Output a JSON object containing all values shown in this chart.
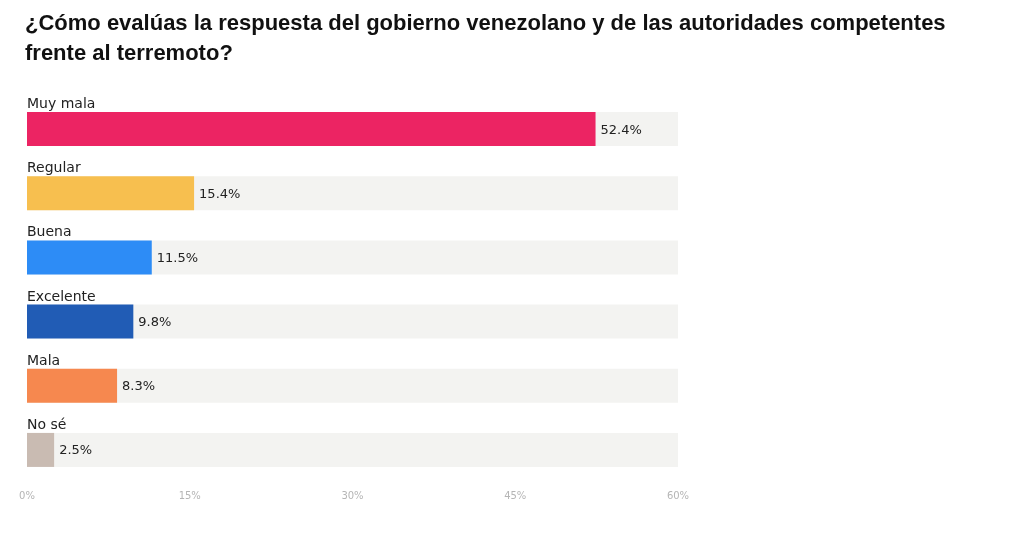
{
  "chart_data": {
    "type": "bar",
    "orientation": "horizontal",
    "title": "¿Cómo evalúas la respuesta del gobierno venezolano y de las autoridades competentes frente al terremoto?",
    "categories": [
      "Muy mala",
      "Regular",
      "Buena",
      "Excelente",
      "Mala",
      "No sé"
    ],
    "values": [
      52.4,
      15.4,
      11.5,
      9.8,
      8.3,
      2.5
    ],
    "colors": [
      "#ec2463",
      "#f7bf4f",
      "#2d8cf6",
      "#215cb5",
      "#f6884f",
      "#c9bbb2"
    ],
    "value_labels": [
      "52.4%",
      "15.4%",
      "11.5%",
      "9.8%",
      "8.3%",
      "2.5%"
    ],
    "xlim": [
      0,
      60
    ],
    "xticks": [
      {
        "value": 0,
        "label": "0%"
      },
      {
        "value": 15,
        "label": "15%"
      },
      {
        "value": 30,
        "label": "30%"
      },
      {
        "value": 45,
        "label": "45%"
      },
      {
        "value": 60,
        "label": "60%"
      }
    ],
    "grid": false
  }
}
